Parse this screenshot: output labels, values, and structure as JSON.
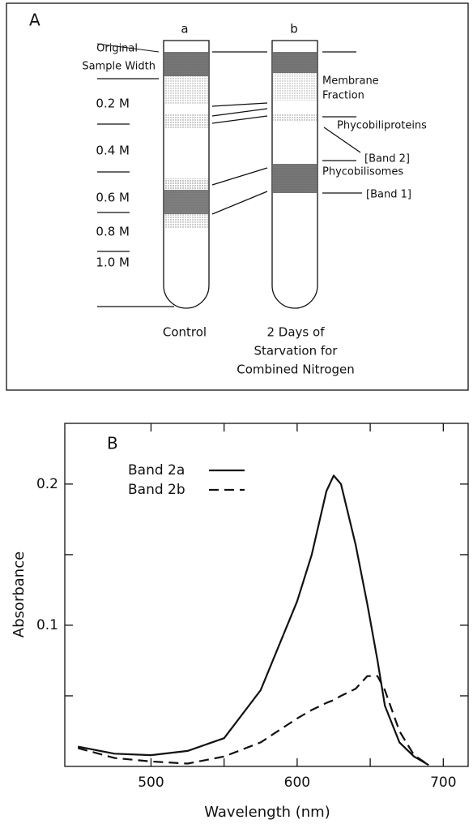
{
  "panel_a": {
    "label": "A",
    "tube_labels": [
      "a",
      "b"
    ],
    "original_sample": [
      "Original",
      "Sample Width"
    ],
    "concentrations": [
      "0.2 M",
      "0.4 M",
      "0.6 M",
      "0.8 M",
      "1.0 M"
    ],
    "membrane": [
      "Membrane",
      "Fraction"
    ],
    "phycobiliproteins": [
      "Phycobiliproteins",
      "[Band 2]"
    ],
    "phycobilisomes": [
      "Phycobilisomes",
      "[Band 1]"
    ],
    "caption_a": [
      "Control"
    ],
    "caption_b": [
      "2 Days of",
      "Starvation for",
      "Combined Nitrogen"
    ]
  },
  "chart_data": {
    "type": "line",
    "panel_label": "B",
    "x_label": "Wavelength (nm)",
    "y_label": "Absorbance",
    "x": [
      450,
      475,
      500,
      525,
      550,
      575,
      600,
      610,
      620,
      625,
      630,
      640,
      648,
      655,
      660,
      670,
      680,
      690
    ],
    "series": [
      {
        "name": "Band 2a",
        "color": "#111111",
        "dash": "solid",
        "values": [
          0.014,
          0.009,
          0.008,
          0.011,
          0.02,
          0.054,
          0.117,
          0.15,
          0.195,
          0.206,
          0.2,
          0.157,
          0.115,
          0.075,
          0.043,
          0.017,
          0.007,
          0.001
        ]
      },
      {
        "name": "Band 2b",
        "color": "#111111",
        "dash": "dashed",
        "values": [
          0.013,
          0.006,
          0.0035,
          0.002,
          0.007,
          0.017,
          0.034,
          0.04,
          0.045,
          0.047,
          0.05,
          0.055,
          0.064,
          0.064,
          0.054,
          0.025,
          0.008,
          0.001
        ]
      }
    ],
    "xlim": [
      441,
      717
    ],
    "ylim": [
      0,
      0.243
    ],
    "xticks": [
      500,
      600,
      700
    ],
    "xminor_ticks": [
      550,
      650
    ],
    "yticks": [
      {
        "value": 0.1,
        "label": "0.1"
      },
      {
        "value": 0.2,
        "label": "0.2"
      }
    ],
    "yminor_ticks": [
      0.05,
      0.15
    ]
  }
}
